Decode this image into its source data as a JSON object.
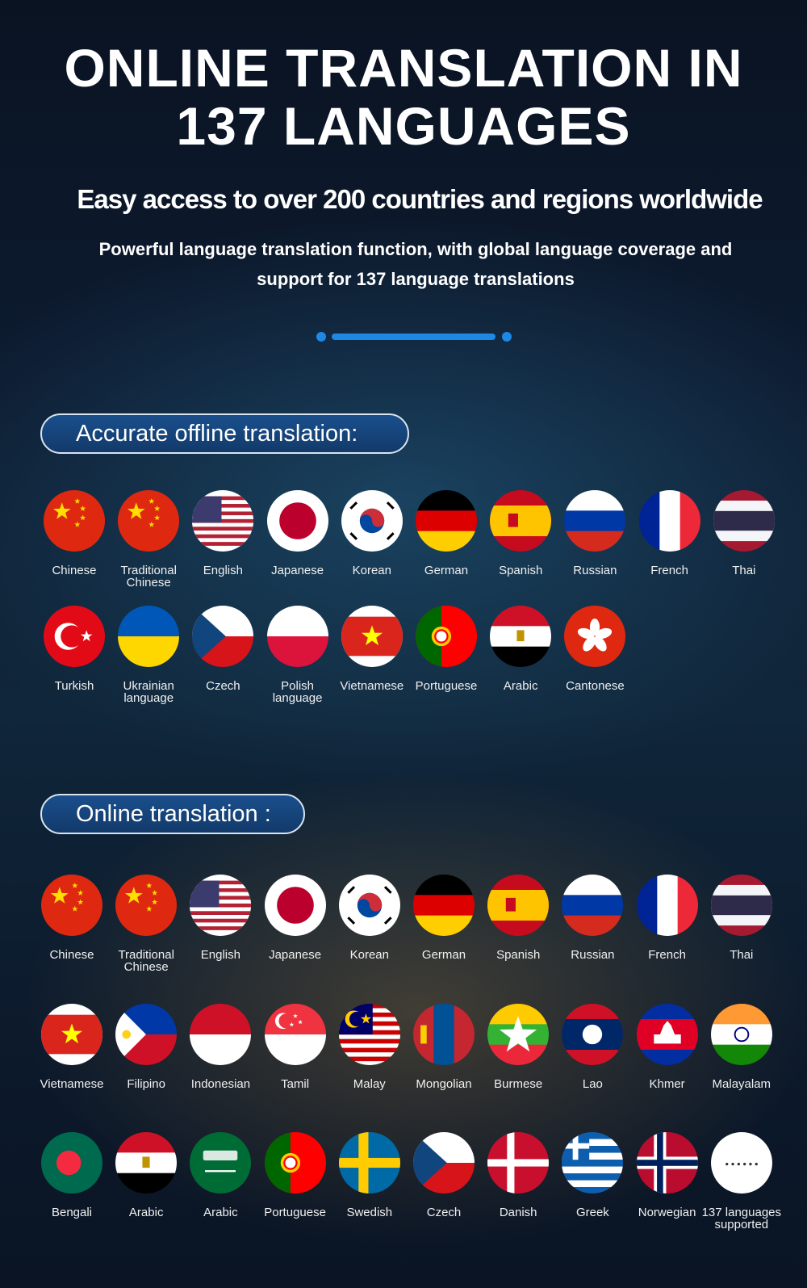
{
  "header": {
    "title": "ONLINE TRANSLATION IN 137 LANGUAGES",
    "subtitle": "Easy access to over 200 countries and regions worldwide",
    "description": "Powerful language translation function, with global language coverage and support for 137 language translations"
  },
  "sections": [
    {
      "label": "Accurate offline translation:",
      "languages": [
        "Chinese",
        "Traditional Chinese",
        "English",
        "Japanese",
        "Korean",
        "German",
        "Spanish",
        "Russian",
        "French",
        "Thai",
        "Turkish",
        "Ukrainian language",
        "Czech",
        "Polish language",
        "Vietnamese",
        "Portuguese",
        "Arabic",
        "Cantonese"
      ]
    },
    {
      "label": "Online translation :",
      "languages": [
        "Chinese",
        "Traditional Chinese",
        "English",
        "Japanese",
        "Korean",
        "German",
        "Spanish",
        "Russian",
        "French",
        "Thai",
        "Vietnamese",
        "Filipino",
        "Indonesian",
        "Tamil",
        "Malay",
        "Mongolian",
        "Burmese",
        "Lao",
        "Khmer",
        "Malayalam",
        "Bengali",
        "Arabic",
        "Arabic",
        "Portuguese",
        "Swedish",
        "Czech",
        "Danish",
        "Greek",
        "Norwegian",
        "137 languages supported"
      ]
    }
  ]
}
